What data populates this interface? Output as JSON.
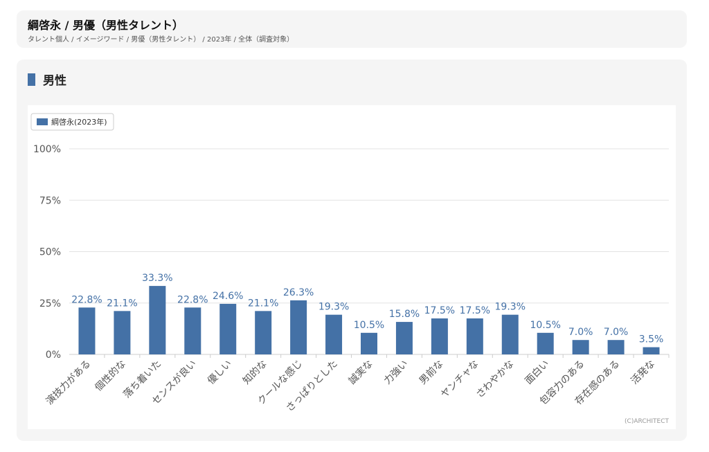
{
  "header": {
    "title": "綱啓永 / 男優（男性タレント）",
    "breadcrumb": "タレント個人 / イメージワード / 男優（男性タレント） / 2023年 / 全体（調査対象）"
  },
  "section": {
    "title": "男性"
  },
  "colors": {
    "bar": "#4471a6",
    "label": "#4471a6",
    "grid": "#e3e3e3",
    "tick": "#555555"
  },
  "copyright": "(C)ARCHITECT",
  "chart_data": {
    "type": "bar",
    "title": "",
    "xlabel": "",
    "ylabel": "",
    "ylim": [
      0,
      100
    ],
    "yticks": [
      0,
      25,
      50,
      75,
      100
    ],
    "ytick_labels": [
      "0%",
      "25%",
      "50%",
      "75%",
      "100%"
    ],
    "legend": {
      "position": "top-left",
      "entries": [
        "綱啓永(2023年)"
      ]
    },
    "grid": true,
    "categories": [
      "演技力がある",
      "個性的な",
      "落ち着いた",
      "センスが良い",
      "優しい",
      "知的な",
      "クールな感じ",
      "さっぱりとした",
      "誠実な",
      "力強い",
      "男前な",
      "ヤンチャな",
      "さわやかな",
      "面白い",
      "包容力のある",
      "存在感のある",
      "活発な"
    ],
    "series": [
      {
        "name": "綱啓永(2023年)",
        "values": [
          22.8,
          21.1,
          33.3,
          22.8,
          24.6,
          21.1,
          26.3,
          19.3,
          10.5,
          15.8,
          17.5,
          17.5,
          19.3,
          10.5,
          7.0,
          7.0,
          3.5
        ],
        "labels": [
          "22.8%",
          "21.1%",
          "33.3%",
          "22.8%",
          "24.6%",
          "21.1%",
          "26.3%",
          "19.3%",
          "10.5%",
          "15.8%",
          "17.5%",
          "17.5%",
          "19.3%",
          "10.5%",
          "7.0%",
          "7.0%",
          "3.5%"
        ]
      }
    ]
  }
}
